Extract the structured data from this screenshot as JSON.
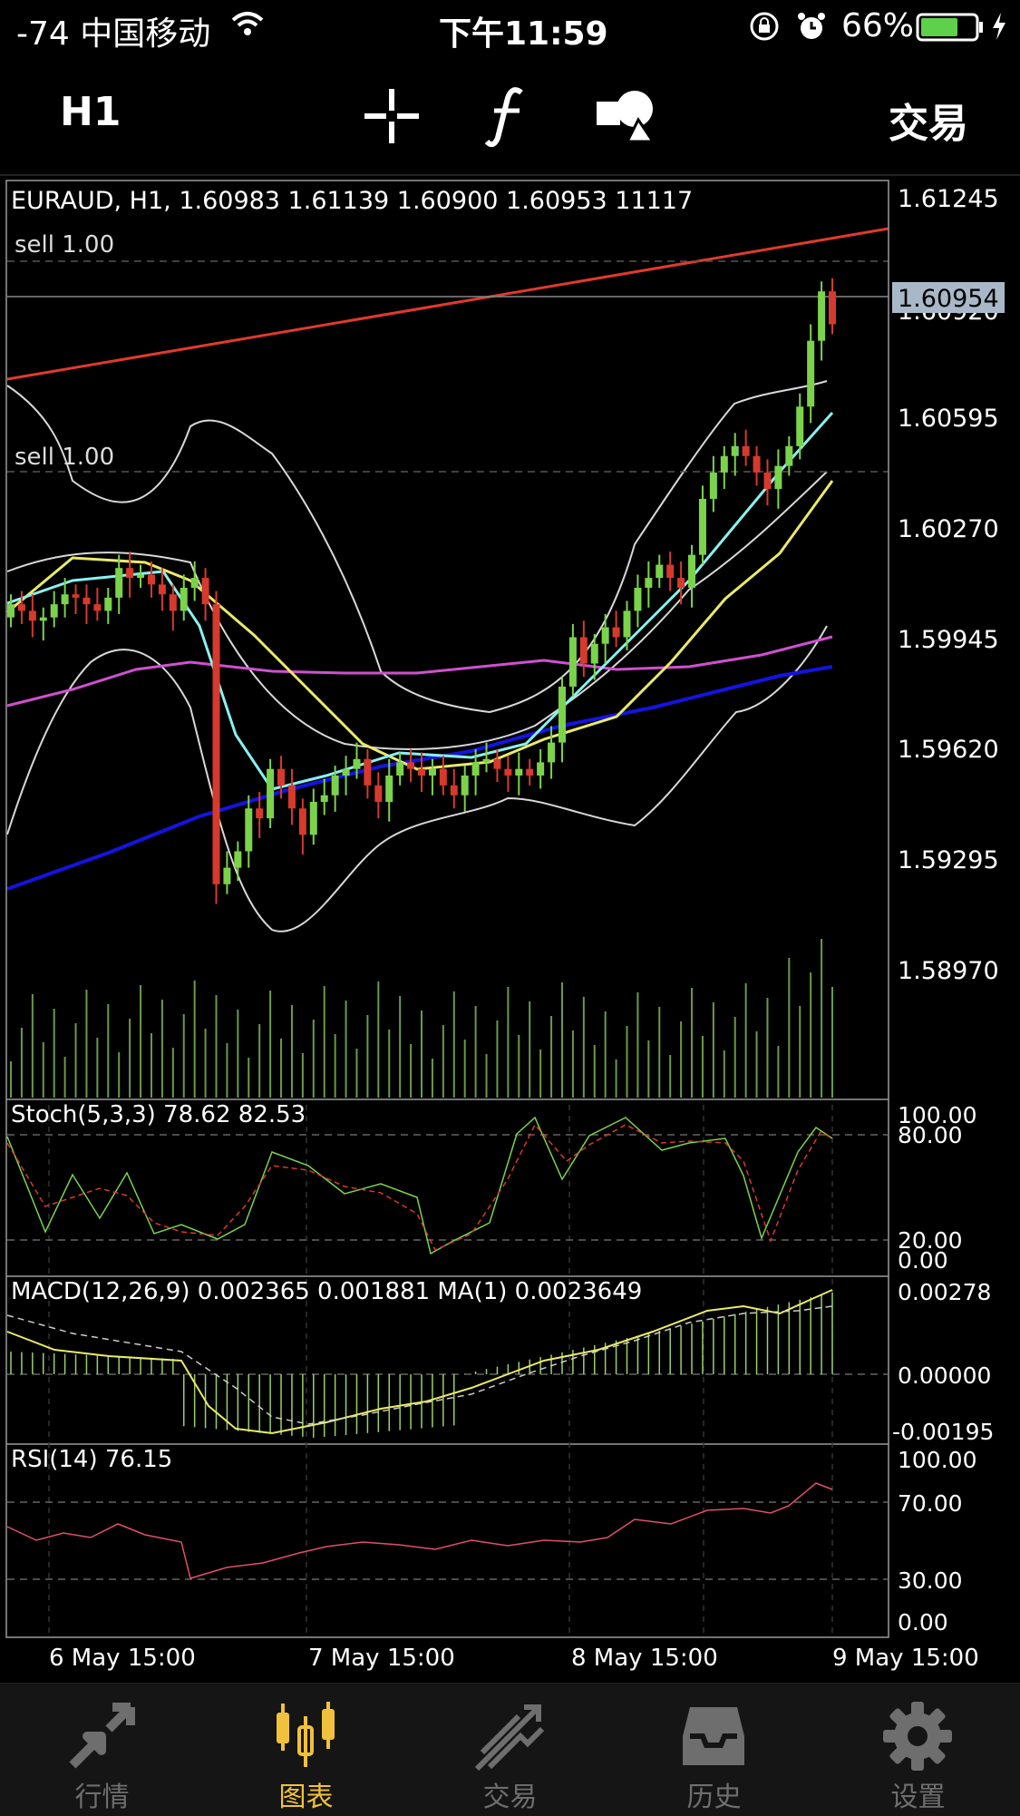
{
  "status_bar": {
    "signal": "-74 中国移动",
    "time": "下午11:59",
    "battery": "66%"
  },
  "toolbar": {
    "timeframe": "H1",
    "trade_label": "交易",
    "icons": [
      "crosshair-icon",
      "function-icon",
      "objects-icon"
    ]
  },
  "main_chart": {
    "header": "EURAUD, H1, 1.60983 1.61139 1.60900 1.60953 11117",
    "order_labels": [
      "sell 1.00",
      "sell 1.00"
    ],
    "price_ticks": [
      "1.61245",
      "1.60595",
      "1.60270",
      "1.59945",
      "1.59620",
      "1.59295",
      "1.58970"
    ],
    "current_price": "1.60954",
    "hidden_tick": "1.60920"
  },
  "stoch": {
    "header": "Stoch(5,3,3) 78.62 82.53",
    "ticks": [
      "100.00",
      "80.00",
      "20.00",
      "0.00"
    ]
  },
  "macd": {
    "header": "MACD(12,26,9) 0.002365 0.001881 MA(1) 0.0023649",
    "ticks": [
      "0.00278",
      "0.00000",
      "-0.00195"
    ]
  },
  "rsi": {
    "header": "RSI(14) 76.15",
    "ticks": [
      "100.00",
      "70.00",
      "30.00",
      "0.00"
    ]
  },
  "time_axis": [
    "6 May 15:00",
    "7 May 15:00",
    "8 May 15:00",
    "9 May 15:00"
  ],
  "tabs": [
    {
      "label": "行情",
      "icon": "quotes-arrows-icon"
    },
    {
      "label": "图表",
      "icon": "candlestick-chart-icon"
    },
    {
      "label": "交易",
      "icon": "trade-trend-icon"
    },
    {
      "label": "历史",
      "icon": "history-inbox-icon"
    },
    {
      "label": "设置",
      "icon": "settings-gear-icon"
    }
  ],
  "colors": {
    "bull": "#7bd34b",
    "bear": "#d63a2c",
    "upper_line": "#e03a2e",
    "ma_blue": "#1414e0",
    "ma_magenta": "#d050d0",
    "ma_yellow": "#eaea6a",
    "ma_cyan": "#8af0f0",
    "bollinger": "#d8d8d8",
    "active_tab": "#f0c13c"
  },
  "chart_data": {
    "type": "candlestick",
    "symbol": "EURAUD",
    "timeframe": "H1",
    "last_bar": {
      "open": 1.60983,
      "high": 1.61139,
      "low": 1.609,
      "close": 1.60953,
      "volume": 11117
    },
    "price_range": [
      1.5885,
      1.6137
    ],
    "closes": [
      1.601,
      1.6008,
      1.6005,
      1.6006,
      1.601,
      1.6013,
      1.6012,
      1.601,
      1.6008,
      1.6012,
      1.6021,
      1.6018,
      1.6019,
      1.6016,
      1.6013,
      1.6008,
      1.6015,
      1.6018,
      1.601,
      1.5925,
      1.593,
      1.5935,
      1.5948,
      1.5945,
      1.596,
      1.5955,
      1.5948,
      1.594,
      1.595,
      1.5952,
      1.5958,
      1.596,
      1.5963,
      1.5955,
      1.595,
      1.5958,
      1.5962,
      1.596,
      1.5958,
      1.596,
      1.5955,
      1.5952,
      1.5958,
      1.5962,
      1.5963,
      1.596,
      1.5958,
      1.596,
      1.5958,
      1.5962,
      1.5968,
      1.5985,
      1.6,
      1.5992,
      1.5998,
      1.6003,
      1.6,
      1.6008,
      1.6015,
      1.6018,
      1.6022,
      1.6018,
      1.6015,
      1.6025,
      1.6042,
      1.605,
      1.6055,
      1.6058,
      1.6055,
      1.605,
      1.6045,
      1.6052,
      1.6058,
      1.607,
      1.609,
      1.6105,
      1.6095
    ],
    "stoch_range": [
      0,
      100
    ],
    "stoch_main_last": 78.62,
    "stoch_signal_last": 82.53,
    "macd_range": [
      -0.00195,
      0.00278
    ],
    "macd_last": 0.002365,
    "macd_signal_last": 0.001881,
    "rsi_range": [
      0,
      100
    ],
    "rsi_last": 76.15,
    "x_labels": [
      "6 May 15:00",
      "7 May 15:00",
      "8 May 15:00",
      "9 May 15:00"
    ]
  }
}
